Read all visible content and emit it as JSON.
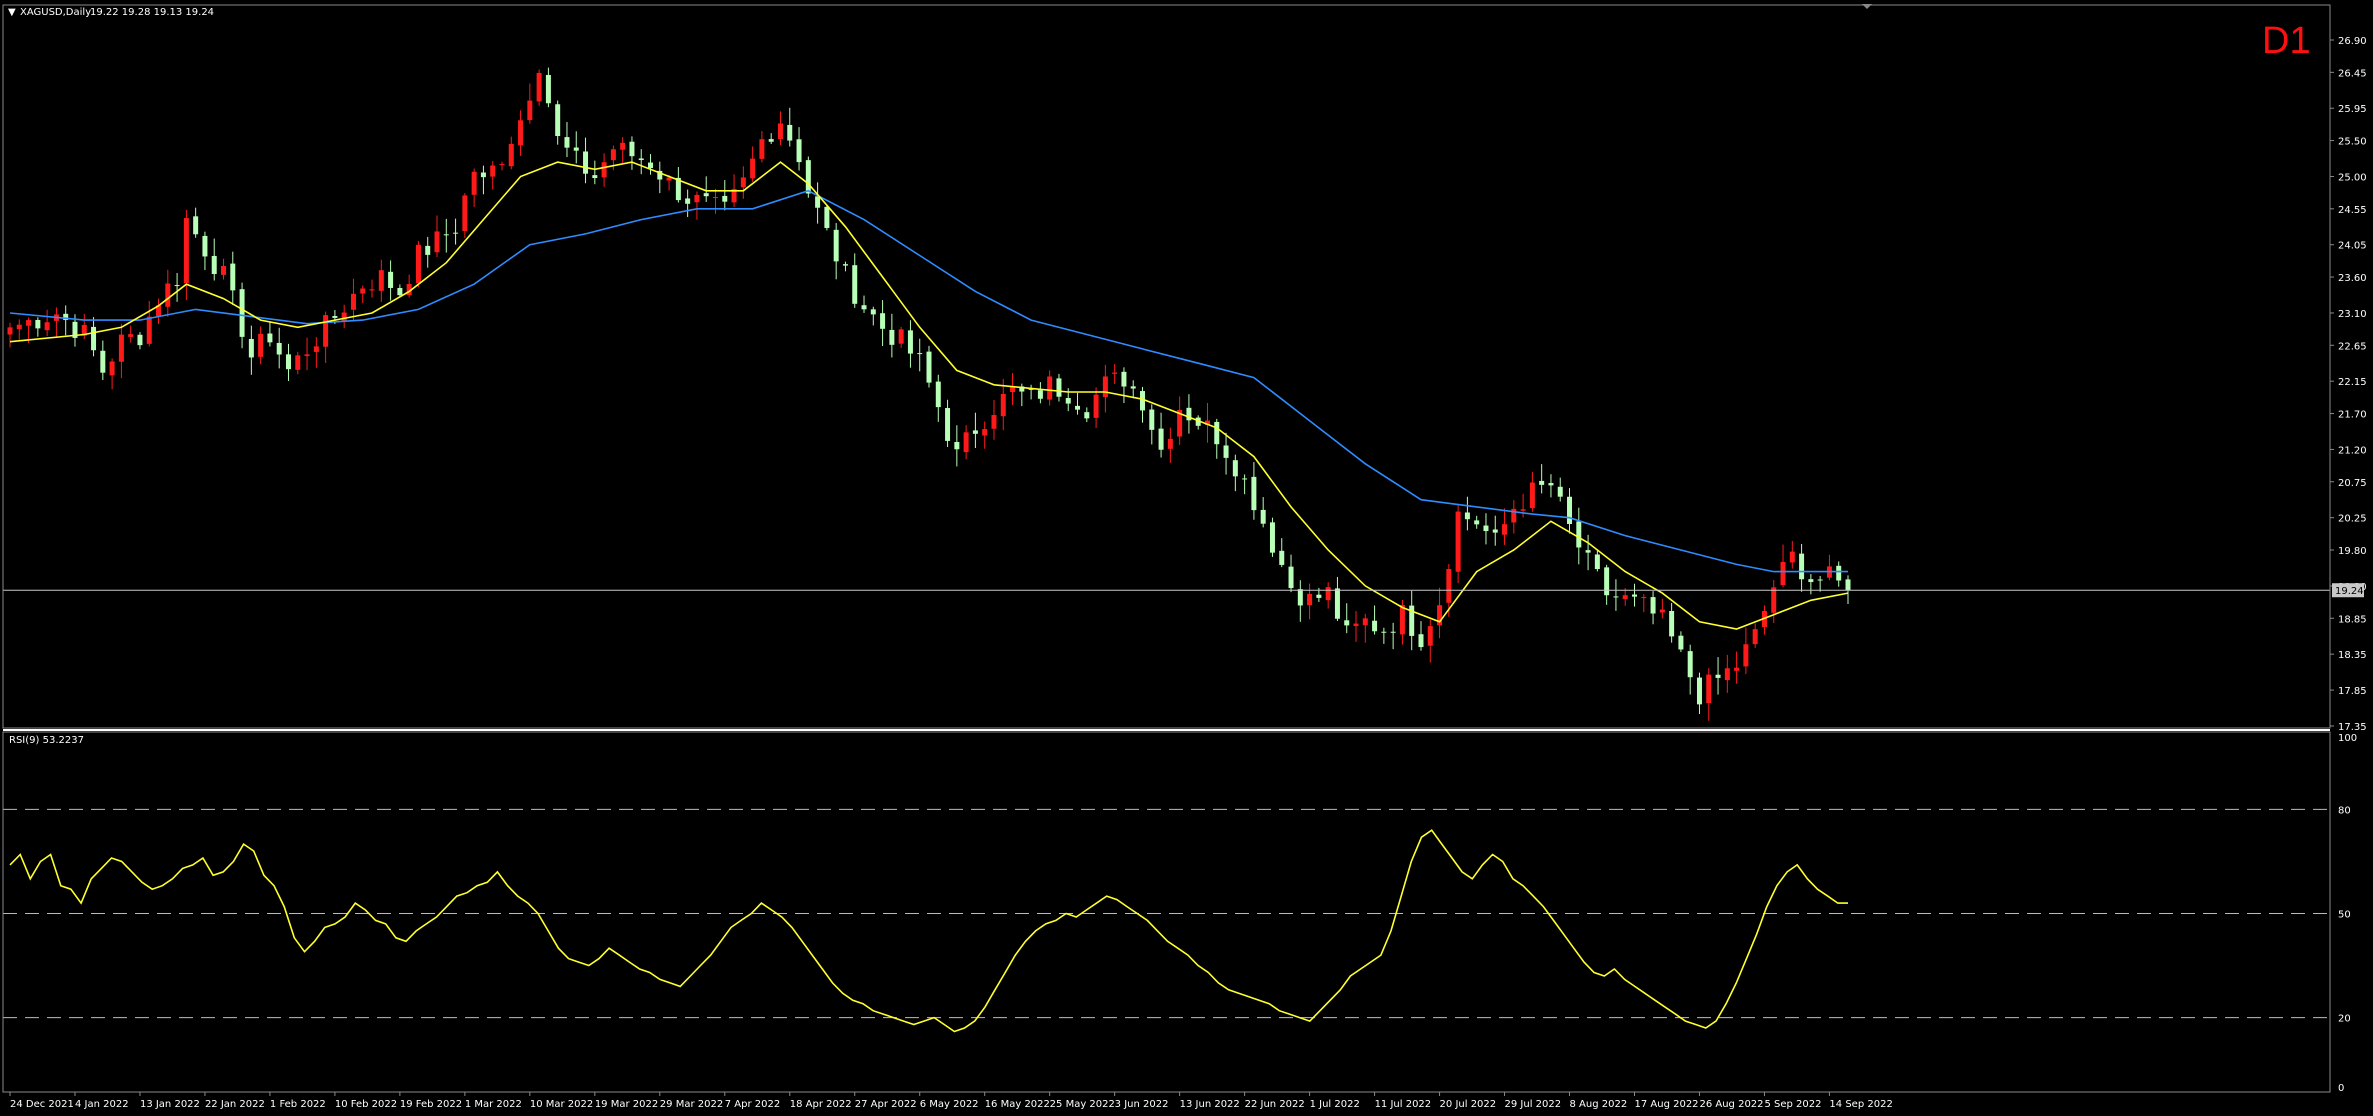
{
  "header": {
    "symbol": "XAGUSD,Daily",
    "ohlc": "19.22 19.28 19.13 19.24",
    "timeframe": "D1"
  },
  "rsi_header": "RSI(9) 53.2237",
  "current_price_label": "19.24",
  "colors": {
    "background": "#000000",
    "bull": "#ff1a1a",
    "bear": "#b8ffb8",
    "ma_fast": "#ffff2e",
    "ma_slow": "#2f8cff",
    "rsi": "#ffff2e",
    "timeframe": "#ff1010",
    "grid": "#8a8a8a"
  },
  "chart_data": [
    {
      "type": "candlestick",
      "title": "XAGUSD,Daily",
      "y_ticks": [
        "26.90",
        "26.45",
        "25.95",
        "25.50",
        "25.00",
        "24.55",
        "24.05",
        "23.60",
        "23.10",
        "22.65",
        "22.15",
        "21.70",
        "21.20",
        "20.75",
        "20.25",
        "19.80",
        "19.30",
        "18.85",
        "18.35",
        "17.85",
        "17.35"
      ],
      "ylim": [
        17.35,
        26.9
      ],
      "x_ticks": [
        "24 Dec 2021",
        "4 Jan 2022",
        "13 Jan 2022",
        "22 Jan 2022",
        "1 Feb 2022",
        "10 Feb 2022",
        "19 Feb 2022",
        "1 Mar 2022",
        "10 Mar 2022",
        "19 Mar 2022",
        "29 Mar 2022",
        "7 Apr 2022",
        "18 Apr 2022",
        "27 Apr 2022",
        "6 May 2022",
        "16 May 2022",
        "25 May 2022",
        "3 Jun 2022",
        "13 Jun 2022",
        "22 Jun 2022",
        "1 Jul 2022",
        "11 Jul 2022",
        "20 Jul 2022",
        "29 Jul 2022",
        "8 Aug 2022",
        "17 Aug 2022",
        "26 Aug 2022",
        "5 Sep 2022",
        "14 Sep 2022"
      ],
      "close_path": [
        [
          0,
          22.9
        ],
        [
          5,
          23.1
        ],
        [
          8,
          22.8
        ],
        [
          10,
          22.3
        ],
        [
          12,
          22.7
        ],
        [
          14,
          22.8
        ],
        [
          16,
          23.3
        ],
        [
          18,
          23.6
        ],
        [
          19,
          24.4
        ],
        [
          21,
          24.0
        ],
        [
          23,
          23.6
        ],
        [
          25,
          22.9
        ],
        [
          26,
          22.5
        ],
        [
          28,
          22.8
        ],
        [
          30,
          22.3
        ],
        [
          32,
          22.6
        ],
        [
          34,
          22.9
        ],
        [
          36,
          23.2
        ],
        [
          38,
          23.5
        ],
        [
          40,
          23.6
        ],
        [
          42,
          23.4
        ],
        [
          44,
          23.9
        ],
        [
          46,
          24.1
        ],
        [
          48,
          24.3
        ],
        [
          50,
          25.1
        ],
        [
          51,
          24.9
        ],
        [
          53,
          25.3
        ],
        [
          55,
          25.8
        ],
        [
          57,
          26.6
        ],
        [
          59,
          25.5
        ],
        [
          61,
          25.2
        ],
        [
          63,
          25.0
        ],
        [
          65,
          25.4
        ],
        [
          67,
          25.3
        ],
        [
          69,
          25.2
        ],
        [
          71,
          24.9
        ],
        [
          73,
          24.7
        ],
        [
          75,
          24.6
        ],
        [
          77,
          24.5
        ],
        [
          79,
          24.9
        ],
        [
          81,
          25.5
        ],
        [
          83,
          25.8
        ],
        [
          85,
          25.3
        ],
        [
          86,
          24.8
        ],
        [
          88,
          24.2
        ],
        [
          90,
          23.6
        ],
        [
          92,
          23.2
        ],
        [
          94,
          22.9
        ],
        [
          96,
          22.7
        ],
        [
          98,
          22.4
        ],
        [
          100,
          21.8
        ],
        [
          102,
          21.1
        ],
        [
          104,
          21.5
        ],
        [
          106,
          21.8
        ],
        [
          108,
          22.0
        ],
        [
          110,
          21.9
        ],
        [
          112,
          22.1
        ],
        [
          114,
          22.0
        ],
        [
          116,
          21.8
        ],
        [
          118,
          22.1
        ],
        [
          120,
          22.2
        ],
        [
          122,
          21.9
        ],
        [
          124,
          21.2
        ],
        [
          126,
          21.8
        ],
        [
          128,
          21.6
        ],
        [
          130,
          21.4
        ],
        [
          132,
          21.0
        ],
        [
          134,
          20.5
        ],
        [
          136,
          19.9
        ],
        [
          138,
          19.3
        ],
        [
          140,
          19.1
        ],
        [
          142,
          19.2
        ],
        [
          144,
          18.6
        ],
        [
          146,
          18.8
        ],
        [
          148,
          18.7
        ],
        [
          150,
          18.9
        ],
        [
          152,
          18.6
        ],
        [
          154,
          19.1
        ],
        [
          156,
          20.3
        ],
        [
          158,
          20.2
        ],
        [
          160,
          19.9
        ],
        [
          162,
          20.4
        ],
        [
          164,
          20.6
        ],
        [
          166,
          20.7
        ],
        [
          168,
          20.1
        ],
        [
          170,
          19.6
        ],
        [
          172,
          19.2
        ],
        [
          174,
          19.1
        ],
        [
          176,
          19.0
        ],
        [
          178,
          18.8
        ],
        [
          180,
          18.3
        ],
        [
          182,
          17.8
        ],
        [
          184,
          18.0
        ],
        [
          186,
          18.2
        ],
        [
          188,
          18.6
        ],
        [
          190,
          19.3
        ],
        [
          192,
          19.7
        ],
        [
          194,
          19.4
        ],
        [
          196,
          19.4
        ],
        [
          198,
          19.24
        ]
      ],
      "ma_fast": [
        [
          0,
          22.7
        ],
        [
          8,
          22.8
        ],
        [
          12,
          22.9
        ],
        [
          16,
          23.2
        ],
        [
          19,
          23.5
        ],
        [
          23,
          23.3
        ],
        [
          27,
          23.0
        ],
        [
          31,
          22.9
        ],
        [
          35,
          23.0
        ],
        [
          39,
          23.1
        ],
        [
          43,
          23.4
        ],
        [
          47,
          23.8
        ],
        [
          51,
          24.4
        ],
        [
          55,
          25.0
        ],
        [
          59,
          25.2
        ],
        [
          63,
          25.1
        ],
        [
          67,
          25.2
        ],
        [
          71,
          25.0
        ],
        [
          75,
          24.8
        ],
        [
          79,
          24.8
        ],
        [
          83,
          25.2
        ],
        [
          86,
          24.9
        ],
        [
          90,
          24.3
        ],
        [
          94,
          23.6
        ],
        [
          98,
          22.9
        ],
        [
          102,
          22.3
        ],
        [
          106,
          22.1
        ],
        [
          110,
          22.05
        ],
        [
          114,
          22.0
        ],
        [
          118,
          22.0
        ],
        [
          122,
          21.9
        ],
        [
          126,
          21.7
        ],
        [
          130,
          21.5
        ],
        [
          134,
          21.1
        ],
        [
          138,
          20.4
        ],
        [
          142,
          19.8
        ],
        [
          146,
          19.3
        ],
        [
          150,
          19.0
        ],
        [
          154,
          18.8
        ],
        [
          158,
          19.5
        ],
        [
          162,
          19.8
        ],
        [
          166,
          20.2
        ],
        [
          170,
          19.9
        ],
        [
          174,
          19.5
        ],
        [
          178,
          19.2
        ],
        [
          182,
          18.8
        ],
        [
          186,
          18.7
        ],
        [
          190,
          18.9
        ],
        [
          194,
          19.1
        ],
        [
          198,
          19.2
        ]
      ],
      "ma_slow": [
        [
          0,
          23.1
        ],
        [
          8,
          23.0
        ],
        [
          14,
          23.0
        ],
        [
          20,
          23.15
        ],
        [
          26,
          23.05
        ],
        [
          32,
          22.95
        ],
        [
          38,
          23.0
        ],
        [
          44,
          23.15
        ],
        [
          50,
          23.5
        ],
        [
          56,
          24.05
        ],
        [
          62,
          24.2
        ],
        [
          68,
          24.4
        ],
        [
          74,
          24.55
        ],
        [
          80,
          24.55
        ],
        [
          86,
          24.8
        ],
        [
          92,
          24.4
        ],
        [
          98,
          23.9
        ],
        [
          104,
          23.4
        ],
        [
          110,
          23.0
        ],
        [
          116,
          22.8
        ],
        [
          122,
          22.6
        ],
        [
          128,
          22.4
        ],
        [
          134,
          22.2
        ],
        [
          140,
          21.6
        ],
        [
          146,
          21.0
        ],
        [
          152,
          20.5
        ],
        [
          158,
          20.4
        ],
        [
          164,
          20.3
        ],
        [
          168,
          20.25
        ],
        [
          174,
          20.0
        ],
        [
          180,
          19.8
        ],
        [
          186,
          19.6
        ],
        [
          190,
          19.5
        ],
        [
          194,
          19.5
        ],
        [
          198,
          19.5
        ]
      ]
    },
    {
      "type": "line",
      "title": "RSI(9) 53.2237",
      "y_ticks": [
        "100",
        "80",
        "50",
        "20",
        "0"
      ],
      "ylim": [
        0,
        100
      ],
      "levels": [
        80,
        50,
        20
      ],
      "values": [
        64,
        67,
        60,
        65,
        67,
        58,
        57,
        53,
        60,
        63,
        66,
        65,
        62,
        59,
        57,
        58,
        60,
        63,
        64,
        66,
        61,
        62,
        65,
        70,
        68,
        61,
        58,
        52,
        43,
        39,
        42,
        46,
        47,
        49,
        53,
        51,
        48,
        47,
        43,
        42,
        45,
        47,
        49,
        52,
        55,
        56,
        58,
        59,
        62,
        58,
        55,
        53,
        50,
        45,
        40,
        37,
        36,
        35,
        37,
        40,
        38,
        36,
        34,
        33,
        31,
        30,
        29,
        32,
        35,
        38,
        42,
        46,
        48,
        50,
        53,
        51,
        49,
        46,
        42,
        38,
        34,
        30,
        27,
        25,
        24,
        22,
        21,
        20,
        19,
        18,
        19,
        20,
        18,
        16,
        17,
        19,
        23,
        28,
        33,
        38,
        42,
        45,
        47,
        48,
        50,
        49,
        51,
        53,
        55,
        54,
        52,
        50,
        48,
        45,
        42,
        40,
        38,
        35,
        33,
        30,
        28,
        27,
        26,
        25,
        24,
        22,
        21,
        20,
        19,
        22,
        25,
        28,
        32,
        34,
        36,
        38,
        45,
        55,
        65,
        72,
        74,
        70,
        66,
        62,
        60,
        64,
        67,
        65,
        60,
        58,
        55,
        52,
        48,
        44,
        40,
        36,
        33,
        32,
        34,
        31,
        29,
        27,
        25,
        23,
        21,
        19,
        18,
        17,
        19,
        24,
        30,
        37,
        44,
        52,
        58,
        62,
        64,
        60,
        57,
        55,
        53,
        53
      ]
    }
  ]
}
